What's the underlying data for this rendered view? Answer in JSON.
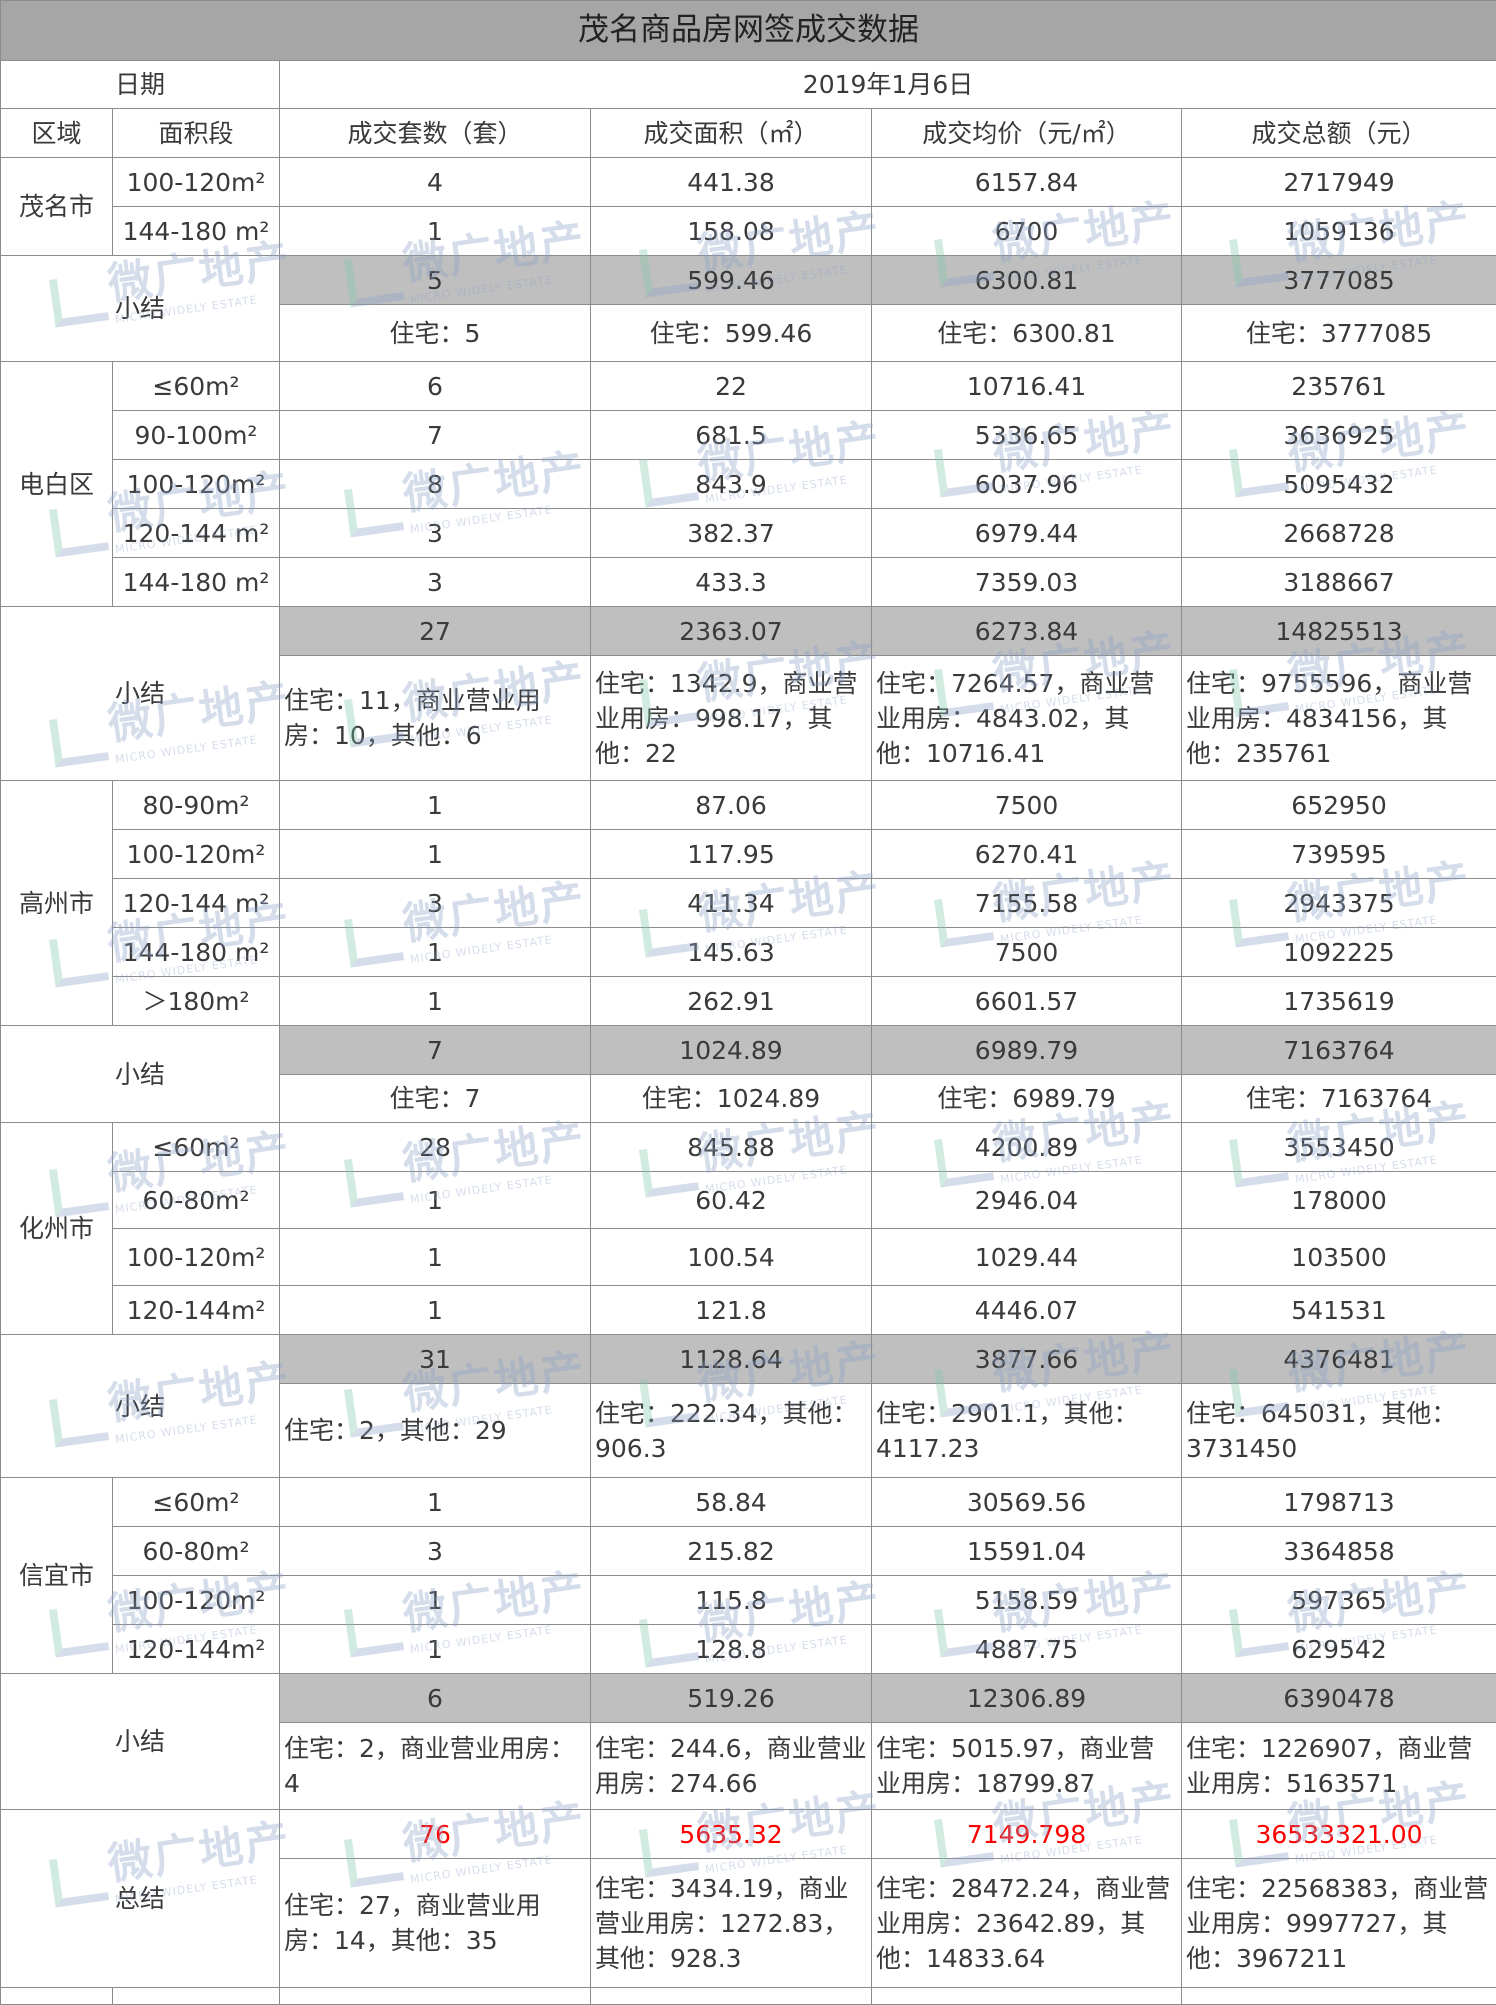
{
  "title": "茂名商品房网签成交数据",
  "date_label": "日期",
  "date_value": "2019年1月6日",
  "headers": [
    "区域",
    "面积段",
    "成交套数（套）",
    "成交面积（㎡）",
    "成交均价（元/㎡）",
    "成交总额（元）"
  ],
  "subtotal_label": "小结",
  "regions": [
    {
      "name": "茂名市",
      "rows": [
        {
          "range": "100-120m²",
          "count": "4",
          "area": "441.38",
          "price": "6157.84",
          "amount": "2717949"
        },
        {
          "range": "144-180 m²",
          "count": "1",
          "area": "158.08",
          "price": "6700",
          "amount": "1059136"
        }
      ],
      "subtotal": {
        "count": "5",
        "area": "599.46",
        "price": "6300.81",
        "amount": "3777085",
        "breakdown": {
          "count": "住宅：5",
          "area": "住宅：599.46",
          "price": "住宅：6300.81",
          "amount": "住宅：3777085"
        }
      }
    },
    {
      "name": "电白区",
      "rows": [
        {
          "range": "≤60m²",
          "count": "6",
          "area": "22",
          "price": "10716.41",
          "amount": "235761"
        },
        {
          "range": "90-100m²",
          "count": "7",
          "area": "681.5",
          "price": "5336.65",
          "amount": "3636925"
        },
        {
          "range": "100-120m²",
          "count": "8",
          "area": "843.9",
          "price": "6037.96",
          "amount": "5095432"
        },
        {
          "range": "120-144 m²",
          "count": "3",
          "area": "382.37",
          "price": "6979.44",
          "amount": "2668728"
        },
        {
          "range": "144-180 m²",
          "count": "3",
          "area": "433.3",
          "price": "7359.03",
          "amount": "3188667"
        }
      ],
      "subtotal": {
        "count": "27",
        "area": "2363.07",
        "price": "6273.84",
        "amount": "14825513",
        "breakdown": {
          "count": "住宅：11，商业营业用房：10，其他：6",
          "area": "住宅：1342.9，商业营业用房：998.17，其他：22",
          "price": "住宅：7264.57，商业营业用房：4843.02，其他：10716.41",
          "amount": "住宅：9755596，商业营业用房：4834156，其他：235761"
        }
      }
    },
    {
      "name": "高州市",
      "rows": [
        {
          "range": "80-90m²",
          "count": "1",
          "area": "87.06",
          "price": "7500",
          "amount": "652950"
        },
        {
          "range": "100-120m²",
          "count": "1",
          "area": "117.95",
          "price": "6270.41",
          "amount": "739595"
        },
        {
          "range": "120-144 m²",
          "count": "3",
          "area": "411.34",
          "price": "7155.58",
          "amount": "2943375"
        },
        {
          "range": "144-180 m²",
          "count": "1",
          "area": "145.63",
          "price": "7500",
          "amount": "1092225"
        },
        {
          "range": "＞180m²",
          "count": "1",
          "area": "262.91",
          "price": "6601.57",
          "amount": "1735619"
        }
      ],
      "subtotal": {
        "count": "7",
        "area": "1024.89",
        "price": "6989.79",
        "amount": "7163764",
        "breakdown": {
          "count": "住宅：7",
          "area": "住宅：1024.89",
          "price": "住宅：6989.79",
          "amount": "住宅：7163764"
        }
      }
    },
    {
      "name": "化州市",
      "rows": [
        {
          "range": "≤60m²",
          "count": "28",
          "area": "845.88",
          "price": "4200.89",
          "amount": "3553450"
        },
        {
          "range": "60-80m²",
          "count": "1",
          "area": "60.42",
          "price": "2946.04",
          "amount": "178000"
        },
        {
          "range": "100-120m²",
          "count": "1",
          "area": "100.54",
          "price": "1029.44",
          "amount": "103500"
        },
        {
          "range": "120-144m²",
          "count": "1",
          "area": "121.8",
          "price": "4446.07",
          "amount": "541531"
        }
      ],
      "subtotal": {
        "count": "31",
        "area": "1128.64",
        "price": "3877.66",
        "amount": "4376481",
        "breakdown": {
          "count": "住宅：2，其他：29",
          "area": "住宅：222.34，其他：906.3",
          "price": "住宅：2901.1，其他：4117.23",
          "amount": "住宅：645031，其他：3731450"
        }
      }
    },
    {
      "name": "信宜市",
      "rows": [
        {
          "range": "≤60m²",
          "count": "1",
          "area": "58.84",
          "price": "30569.56",
          "amount": "1798713"
        },
        {
          "range": "60-80m²",
          "count": "3",
          "area": "215.82",
          "price": "15591.04",
          "amount": "3364858"
        },
        {
          "range": "100-120m²",
          "count": "1",
          "area": "115.8",
          "price": "5158.59",
          "amount": "597365"
        },
        {
          "range": "120-144m²",
          "count": "1",
          "area": "128.8",
          "price": "4887.75",
          "amount": "629542"
        }
      ],
      "subtotal": {
        "count": "6",
        "area": "519.26",
        "price": "12306.89",
        "amount": "6390478",
        "breakdown": {
          "count": "住宅：2，商业营业用房：4",
          "area": "住宅：244.6，商业营业用房：274.66",
          "price": "住宅：5015.97，商业营业用房：18799.87",
          "amount": "住宅：1226907，商业营业用房：5163571"
        }
      }
    }
  ],
  "total": {
    "label": "总结",
    "count": "76",
    "area": "5635.32",
    "price": "7149.798",
    "amount": "36533321.00",
    "breakdown": {
      "count": "住宅：27，商业营业用房：14，其他：35",
      "area": "住宅：3434.19，商业营业用房：1272.83，其他：928.3",
      "price": "住宅：28472.24，商业营业用房：23642.89，其他：14833.64",
      "amount": "住宅：22568383，商业营业用房：9997727，其他：3967211"
    }
  },
  "colors": {
    "title_bg": "#a6a6a6",
    "subtotal_bg": "#bfbfbf",
    "total_highlight": "#ff0000"
  },
  "watermark": {
    "cn": "微广地产",
    "en": "MICRO WIDELY ESTATE"
  }
}
